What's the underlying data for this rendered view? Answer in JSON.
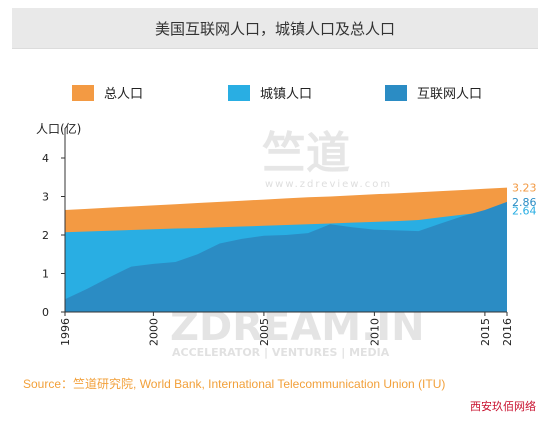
{
  "chart_data": {
    "type": "area",
    "title": "美国互联网人口，城镇人口及总人口",
    "ylabel": "人口(亿)",
    "xlabel": "",
    "ylim": [
      0,
      4
    ],
    "yticks": [
      "0",
      "1",
      "2",
      "3",
      "4"
    ],
    "xlim": [
      1996,
      2016
    ],
    "xticks": [
      "1996",
      "2000",
      "2005",
      "2010",
      "2015",
      "2016"
    ],
    "grid": false,
    "legend_position": "top",
    "x": [
      1996,
      1997,
      1998,
      1999,
      2000,
      2001,
      2002,
      2003,
      2004,
      2005,
      2006,
      2007,
      2008,
      2009,
      2010,
      2011,
      2012,
      2013,
      2014,
      2015,
      2016
    ],
    "series": [
      {
        "name": "总人口",
        "color": "#f39a43",
        "values": [
          2.65,
          2.68,
          2.71,
          2.74,
          2.77,
          2.8,
          2.83,
          2.86,
          2.89,
          2.92,
          2.95,
          2.98,
          3.0,
          3.03,
          3.06,
          3.08,
          3.11,
          3.14,
          3.17,
          3.2,
          3.23
        ],
        "end_label": "3.23"
      },
      {
        "name": "城镇人口",
        "color": "#29aee3",
        "values": [
          2.07,
          2.09,
          2.11,
          2.13,
          2.15,
          2.17,
          2.18,
          2.2,
          2.22,
          2.24,
          2.26,
          2.28,
          2.3,
          2.32,
          2.34,
          2.36,
          2.39,
          2.46,
          2.53,
          2.59,
          2.64
        ],
        "end_label": "2.64"
      },
      {
        "name": "互联网人口",
        "color": "#2b8cc4",
        "values": [
          0.33,
          0.6,
          0.9,
          1.18,
          1.25,
          1.3,
          1.5,
          1.78,
          1.9,
          1.98,
          2.0,
          2.05,
          2.28,
          2.2,
          2.14,
          2.12,
          2.1,
          2.3,
          2.49,
          2.65,
          2.86
        ],
        "end_label": "2.86"
      }
    ]
  },
  "watermarks": {
    "center_logo": "竺道",
    "center_url": "www.zdreview.com",
    "bottom_brand": "ZDREAM.IN",
    "bottom_tagline": "ACCELERATOR | VENTURES | MEDIA"
  },
  "source": "Source：竺道研究院, World Bank, International Telecommunication Union (ITU)",
  "site_mark": "西安玖佰网络"
}
